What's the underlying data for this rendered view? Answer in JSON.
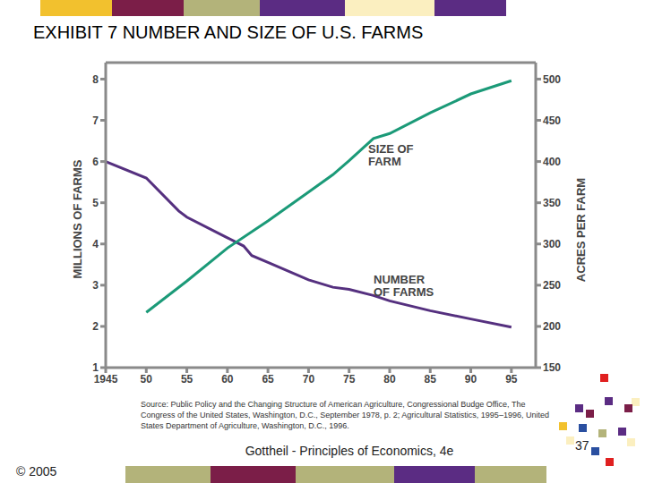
{
  "chart_data": {
    "type": "line",
    "title": "EXHIBIT 7 NUMBER AND SIZE OF U.S. FARMS",
    "y_label": "MILLIONS OF FARMS",
    "y2_label": "ACRES PER FARM",
    "xlim": [
      1945,
      1998
    ],
    "xticks": [
      1945,
      {
        "value": 1950,
        "label": "50"
      },
      {
        "value": 1955,
        "label": "55"
      },
      {
        "value": 1960,
        "label": "60"
      },
      {
        "value": 1965,
        "label": "65"
      },
      {
        "value": 1970,
        "label": "70"
      },
      {
        "value": 1975,
        "label": "75"
      },
      {
        "value": 1980,
        "label": "80"
      },
      {
        "value": 1985,
        "label": "85"
      },
      {
        "value": 1990,
        "label": "90"
      },
      {
        "value": 1995,
        "label": "95"
      }
    ],
    "ylim": [
      1,
      8.4
    ],
    "yticks": [
      1,
      2,
      3,
      4,
      5,
      6,
      7,
      8
    ],
    "y2lim": [
      150,
      520
    ],
    "y2ticks": [
      150,
      200,
      250,
      300,
      350,
      400,
      450,
      500
    ],
    "series": [
      {
        "name": "NUMBER OF FARMS",
        "color": "#55307f",
        "x": [
          1945,
          1950,
          1954,
          1955,
          1960,
          1962,
          1963,
          1965,
          1970,
          1973,
          1975,
          1978,
          1980,
          1985,
          1990,
          1995
        ],
        "values": [
          6.0,
          5.6,
          4.8,
          4.65,
          4.15,
          3.95,
          3.72,
          3.55,
          3.13,
          2.95,
          2.9,
          2.75,
          2.62,
          2.38,
          2.18,
          1.98
        ]
      },
      {
        "name": "SIZE OF FARM",
        "color": "#1b9a78",
        "axis": "y2",
        "x": [
          1950,
          1955,
          1960,
          1965,
          1970,
          1973,
          1975,
          1978,
          1980,
          1985,
          1990,
          1995
        ],
        "values": [
          217,
          255,
          295,
          328,
          363,
          384,
          401,
          428,
          434,
          459,
          482,
          498
        ]
      }
    ],
    "source": "Source: Public Policy and the Changing Structure of American Agriculture, Congressional Budge Office, The Congress of the United States, Washington, D.C., September 1978, p. 2; Agricultural Statistics, 1995–1996, United States Department of Agriculture, Washington, D.C., 1996.",
    "footer": "Gottheil - Principles of Economics, 4e",
    "copyright": "© 2005",
    "page": 37
  }
}
